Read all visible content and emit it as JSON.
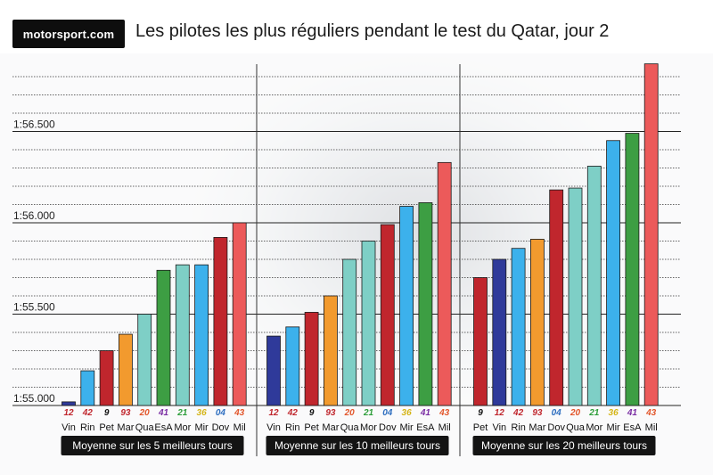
{
  "header": {
    "logo_text": "motorsport.com",
    "title": "Les pilotes les plus réguliers pendant le test du Qatar, jour 2"
  },
  "colors": {
    "Vin": "#2f3a9a",
    "Rin": "#3cb1ec",
    "Pet": "#c0262d",
    "Mar": "#f29a2e",
    "Qua": "#7ecfc6",
    "EsA": "#3d9e43",
    "Mor": "#7ecfc6",
    "Mir": "#3cb1ec",
    "Dov": "#c0262d",
    "Mil": "#ec5a5a"
  },
  "number_colors": {
    "12": "#c0262d",
    "42": "#c0262d",
    "9": "#111111",
    "93": "#c0262d",
    "20": "#e2562b",
    "41": "#7a2da3",
    "21": "#2d9e3a",
    "36": "#d4b416",
    "04": "#2f6fc0",
    "43": "#e2562b"
  },
  "chart_data": {
    "type": "bar",
    "ylabel": "",
    "ylim": [
      54.95,
      56.8
    ],
    "ytick_labels": [
      "1:55.000",
      "1:55.500",
      "1:56.000",
      "1:56.500"
    ],
    "ytick_values": [
      55.0,
      55.5,
      56.0,
      56.5
    ],
    "unit_note": "",
    "panels": [
      {
        "title": "Moyenne sur les 5 meilleurs tours",
        "riders": [
          "Vin",
          "Rin",
          "Pet",
          "Mar",
          "Qua",
          "EsA",
          "Mor",
          "Mir",
          "Dov",
          "Mil"
        ],
        "numbers": [
          "12",
          "42",
          "9",
          "93",
          "20",
          "41",
          "21",
          "36",
          "04",
          "43"
        ],
        "values": [
          55.02,
          55.19,
          55.3,
          55.39,
          55.5,
          55.74,
          55.77,
          55.77,
          55.92,
          56.0
        ]
      },
      {
        "title": "Moyenne sur les 10 meilleurs tours",
        "riders": [
          "Vin",
          "Rin",
          "Pet",
          "Mar",
          "Qua",
          "Mor",
          "Dov",
          "Mir",
          "EsA",
          "Mil"
        ],
        "numbers": [
          "12",
          "42",
          "9",
          "93",
          "20",
          "21",
          "04",
          "36",
          "41",
          "43"
        ],
        "values": [
          55.38,
          55.43,
          55.51,
          55.6,
          55.8,
          55.9,
          55.99,
          56.09,
          56.11,
          56.33
        ]
      },
      {
        "title": "Moyenne sur les 20 meilleurs tours",
        "riders": [
          "Pet",
          "Vin",
          "Rin",
          "Mar",
          "Dov",
          "Qua",
          "Mor",
          "Mir",
          "EsA",
          "Mil"
        ],
        "numbers": [
          "9",
          "12",
          "42",
          "93",
          "04",
          "20",
          "21",
          "36",
          "41",
          "43"
        ],
        "values": [
          55.7,
          55.8,
          55.86,
          55.91,
          56.18,
          56.19,
          56.31,
          56.45,
          56.49,
          56.87
        ]
      }
    ]
  }
}
